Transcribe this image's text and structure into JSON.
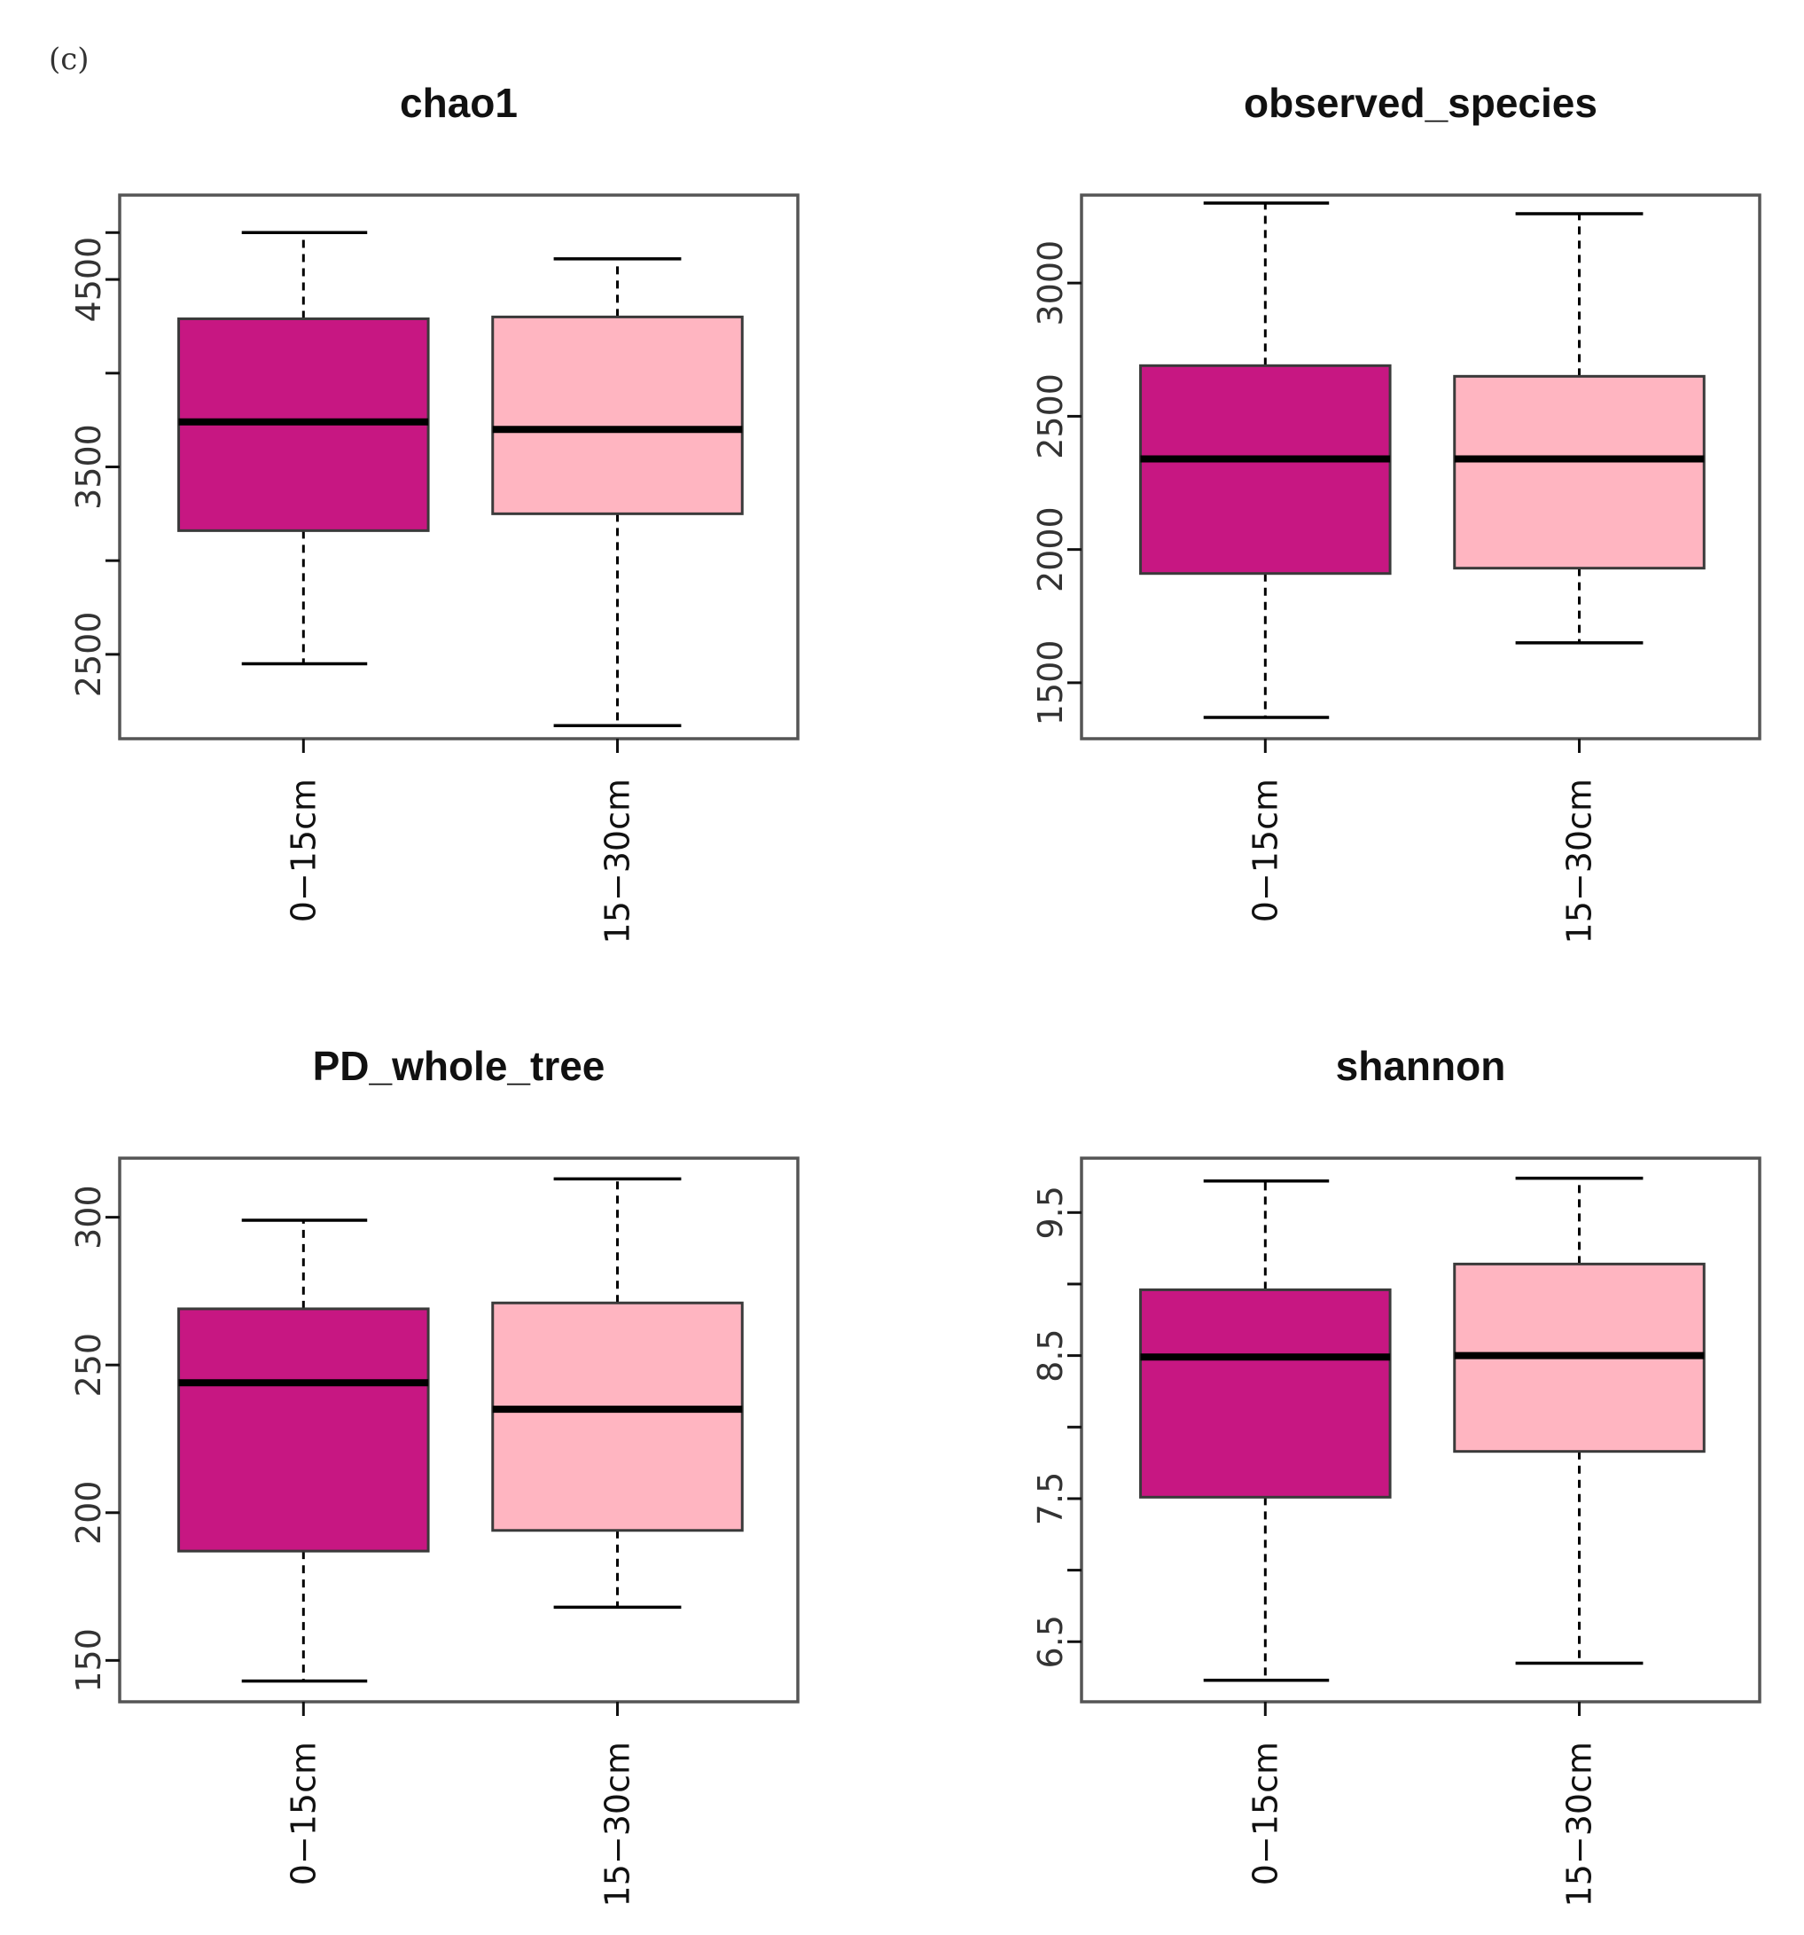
{
  "figure": {
    "panel_label": "(c)"
  },
  "colors": {
    "group1_fill": "#c71782",
    "group2_fill": "#ffb5c1",
    "axis": "#555555",
    "median": "#000000",
    "whisker": "#000000"
  },
  "chart_data": [
    {
      "type": "boxplot",
      "title": "chao1",
      "xlabel": "",
      "ylabel": "",
      "categories": [
        "0−15cm",
        "15−30cm"
      ],
      "ylim": [
        2050,
        4950
      ],
      "yticks": [
        2500,
        3000,
        3500,
        4000,
        4500,
        4750
      ],
      "ytick_labels": [
        "2500",
        "",
        "3500",
        "",
        "4500",
        ""
      ],
      "boxes": [
        {
          "min": 2450,
          "q1": 3160,
          "median": 3740,
          "q3": 4290,
          "max": 4750
        },
        {
          "min": 2120,
          "q1": 3250,
          "median": 3700,
          "q3": 4300,
          "max": 4610
        }
      ]
    },
    {
      "type": "boxplot",
      "title": "observed_species",
      "xlabel": "",
      "ylabel": "",
      "categories": [
        "0−15cm",
        "15−30cm"
      ],
      "ylim": [
        1290,
        3330
      ],
      "yticks": [
        1500,
        2000,
        2500,
        3000
      ],
      "ytick_labels": [
        "1500",
        "2000",
        "2500",
        "3000"
      ],
      "boxes": [
        {
          "min": 1370,
          "q1": 1910,
          "median": 2340,
          "q3": 2690,
          "max": 3300
        },
        {
          "min": 1650,
          "q1": 1930,
          "median": 2340,
          "q3": 2650,
          "max": 3260
        }
      ]
    },
    {
      "type": "boxplot",
      "title": "PD_whole_tree",
      "xlabel": "",
      "ylabel": "",
      "categories": [
        "0−15cm",
        "15−30cm"
      ],
      "ylim": [
        136,
        320
      ],
      "yticks": [
        150,
        200,
        250,
        300
      ],
      "ytick_labels": [
        "150",
        "200",
        "250",
        "300"
      ],
      "boxes": [
        {
          "min": 143,
          "q1": 187,
          "median": 244,
          "q3": 269,
          "max": 299
        },
        {
          "min": 168,
          "q1": 194,
          "median": 235,
          "q3": 271,
          "max": 313
        }
      ]
    },
    {
      "type": "boxplot",
      "title": "shannon",
      "xlabel": "",
      "ylabel": "",
      "categories": [
        "0−15cm",
        "15−30cm"
      ],
      "ylim": [
        6.08,
        9.88
      ],
      "yticks": [
        6.5,
        7.0,
        7.5,
        8.0,
        8.5,
        9.0,
        9.5
      ],
      "ytick_labels": [
        "6.5",
        "",
        "7.5",
        "",
        "8.5",
        "",
        "9.5"
      ],
      "boxes": [
        {
          "min": 6.23,
          "q1": 7.51,
          "median": 8.49,
          "q3": 8.96,
          "max": 9.72
        },
        {
          "min": 6.35,
          "q1": 7.83,
          "median": 8.5,
          "q3": 9.14,
          "max": 9.74
        }
      ]
    }
  ]
}
